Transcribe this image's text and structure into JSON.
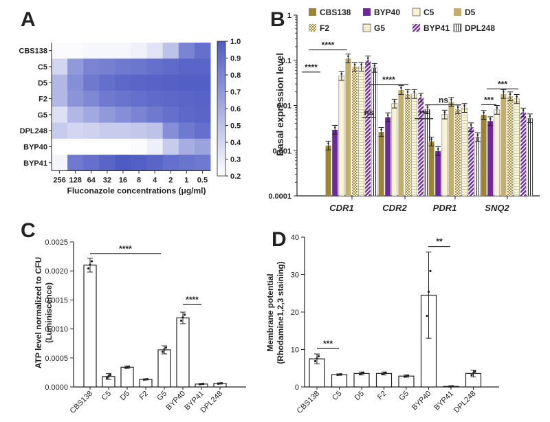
{
  "colors": {
    "gold": "#9b8438",
    "purple": "#6e2a97",
    "cream": "#f5f0cf",
    "heat_high": "#4e5bc3",
    "heat_low": "#ffffff"
  },
  "panels": {
    "A": "A",
    "B": "B",
    "C": "C",
    "D": "D"
  },
  "chart_data": [
    {
      "type": "heatmap",
      "panel": "A",
      "rows": [
        "CBS138",
        "C5",
        "D5",
        "F2",
        "G5",
        "DPL248",
        "BYP40",
        "BYP41"
      ],
      "columns": [
        "256",
        "128",
        "64",
        "32",
        "16",
        "8",
        "4",
        "2",
        "1",
        "0.5"
      ],
      "xlabel": "Fluconazole concentrations (μg/ml)",
      "colorbar": {
        "min": 0.2,
        "max": 1.0,
        "ticks": [
          "1.0",
          "0.9",
          "0.8",
          "0.7",
          "0.6",
          "0.5",
          "0.4",
          "0.3",
          "0.2"
        ]
      },
      "values": [
        [
          0.22,
          0.22,
          0.24,
          0.24,
          0.24,
          0.27,
          0.33,
          0.5,
          0.8,
          0.9
        ],
        [
          0.4,
          0.7,
          0.8,
          0.82,
          0.85,
          0.87,
          0.9,
          0.92,
          0.95,
          0.95
        ],
        [
          0.55,
          0.75,
          0.85,
          0.9,
          0.93,
          0.95,
          0.96,
          0.97,
          0.98,
          0.98
        ],
        [
          0.55,
          0.72,
          0.78,
          0.85,
          0.88,
          0.9,
          0.92,
          0.93,
          0.95,
          0.96
        ],
        [
          0.35,
          0.55,
          0.62,
          0.7,
          0.75,
          0.8,
          0.85,
          0.9,
          0.93,
          0.95
        ],
        [
          0.45,
          0.4,
          0.42,
          0.45,
          0.45,
          0.47,
          0.5,
          0.75,
          0.85,
          0.9
        ],
        [
          0.2,
          0.2,
          0.2,
          0.2,
          0.2,
          0.22,
          0.28,
          0.45,
          0.6,
          0.65
        ],
        [
          0.25,
          0.85,
          0.9,
          0.95,
          1.0,
          0.98,
          0.95,
          0.9,
          0.88,
          0.85
        ]
      ]
    },
    {
      "type": "bar",
      "panel": "B",
      "scale": "log",
      "ylabel": "Basal expression level",
      "yticks": [
        "1",
        "0.1",
        "0.01",
        "0.001",
        "0.0001"
      ],
      "ylim": [
        0.0001,
        1
      ],
      "categories": [
        "CDR1",
        "CDR2",
        "PDR1",
        "SNQ2"
      ],
      "series": [
        {
          "name": "CBS138",
          "style": "gold",
          "values": [
            0.0013,
            0.0026,
            0.0016,
            0.0062
          ]
        },
        {
          "name": "BYP40",
          "style": "purple",
          "values": [
            0.0029,
            0.0055,
            0.00098,
            0.0045
          ]
        },
        {
          "name": "C5",
          "style": "cream",
          "values": [
            0.045,
            0.011,
            0.0063,
            0.008
          ]
        },
        {
          "name": "D5",
          "style": "gold-light",
          "values": [
            0.11,
            0.022,
            0.012,
            0.018
          ]
        },
        {
          "name": "F2",
          "style": "check",
          "values": [
            0.072,
            0.018,
            0.0082,
            0.016
          ]
        },
        {
          "name": "G5",
          "style": "cream-stripe",
          "values": [
            0.072,
            0.018,
            0.0088,
            0.014
          ]
        },
        {
          "name": "BYP41",
          "style": "purple-stripe",
          "values": [
            0.1,
            0.015,
            0.0033,
            0.007
          ]
        },
        {
          "name": "DPL248",
          "style": "white-vstripe",
          "values": [
            0.068,
            0.0082,
            0.002,
            0.0052
          ]
        }
      ],
      "significance": [
        "****",
        "****",
        "ns",
        "****",
        "***",
        "ns",
        "***"
      ]
    },
    {
      "type": "bar",
      "panel": "C",
      "ylabel": "ATP level normalized to CFU\n(Luminiscence)",
      "categories": [
        "CBS138",
        "C5",
        "D5",
        "F2",
        "G5",
        "BYP40",
        "BYP41",
        "DPL248"
      ],
      "values": [
        0.0021,
        0.00018,
        0.00034,
        0.00013,
        0.00064,
        0.00119,
        5e-05,
        6e-05
      ],
      "errors": [
        0.00012,
        5e-05,
        2e-05,
        1e-05,
        7e-05,
        0.0001,
        1e-05,
        1e-05
      ],
      "ylim": [
        0,
        0.0025
      ],
      "yticks": [
        "0.0000",
        "0.0005",
        "0.0010",
        "0.0015",
        "0.0020",
        "0.0025"
      ],
      "significance": [
        "****",
        "****"
      ]
    },
    {
      "type": "bar",
      "panel": "D",
      "ylabel": "Membrane potential\n(Rhodamine1,2,3 staining)",
      "categories": [
        "CBS138",
        "C5",
        "D5",
        "F2",
        "G5",
        "BYP40",
        "BYP41",
        "DPL248"
      ],
      "values": [
        7.5,
        3.3,
        3.6,
        3.6,
        2.9,
        24.5,
        0.15,
        3.6
      ],
      "errors": [
        1.3,
        0.2,
        0.4,
        0.4,
        0.3,
        11.5,
        0.05,
        0.9
      ],
      "ylim": [
        0,
        40
      ],
      "yticks": [
        "0",
        "10",
        "20",
        "30",
        "40"
      ],
      "significance": [
        "***",
        "**"
      ]
    }
  ]
}
